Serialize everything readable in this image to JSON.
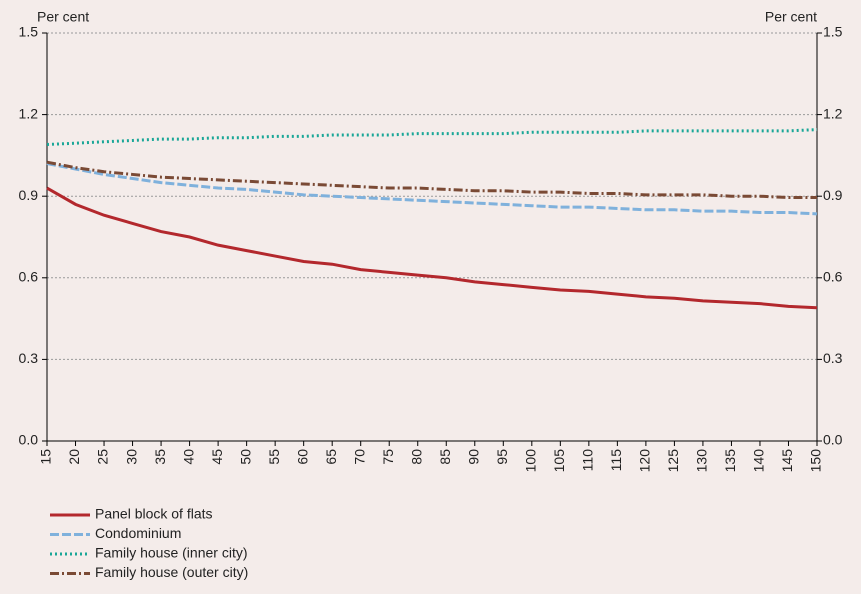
{
  "chart_data": {
    "type": "line",
    "y_label": "Per cent",
    "y2_label": "Per cent",
    "x": [
      15,
      20,
      25,
      30,
      35,
      40,
      45,
      50,
      55,
      60,
      65,
      70,
      75,
      80,
      85,
      90,
      95,
      100,
      105,
      110,
      115,
      120,
      125,
      130,
      135,
      140,
      145,
      150
    ],
    "xlim": [
      15,
      150
    ],
    "xticks": [
      15,
      20,
      25,
      30,
      35,
      40,
      45,
      50,
      55,
      60,
      65,
      70,
      75,
      80,
      85,
      90,
      95,
      100,
      105,
      110,
      115,
      120,
      125,
      130,
      135,
      140,
      145,
      150
    ],
    "ylim": [
      0,
      1.5
    ],
    "yticks": [
      {
        "value": 0,
        "label": "0.0"
      },
      0.3,
      0.6,
      0.9,
      1.2,
      1.5
    ],
    "y2lim": [
      0,
      1.5
    ],
    "y2ticks": [
      {
        "value": 0,
        "label": "0.0"
      },
      0.3,
      0.6,
      0.9,
      1.2,
      1.5
    ],
    "grid": true,
    "series": [
      {
        "name": "Panel block of flats",
        "color": "#b3282d",
        "dash": "solid",
        "values": [
          0.93,
          0.87,
          0.83,
          0.8,
          0.77,
          0.75,
          0.72,
          0.7,
          0.68,
          0.66,
          0.65,
          0.63,
          0.62,
          0.61,
          0.6,
          0.585,
          0.575,
          0.565,
          0.555,
          0.55,
          0.54,
          0.53,
          0.525,
          0.515,
          0.51,
          0.505,
          0.495,
          0.49
        ]
      },
      {
        "name": "Condominium",
        "color": "#7fb1dc",
        "dash": "dashed",
        "values": [
          1.02,
          1.0,
          0.98,
          0.965,
          0.95,
          0.94,
          0.93,
          0.925,
          0.915,
          0.905,
          0.9,
          0.895,
          0.89,
          0.885,
          0.88,
          0.875,
          0.87,
          0.865,
          0.86,
          0.86,
          0.855,
          0.85,
          0.85,
          0.845,
          0.845,
          0.84,
          0.84,
          0.835
        ]
      },
      {
        "name": "Family house (inner city)",
        "color": "#19a697",
        "dash": "dotted",
        "values": [
          1.09,
          1.095,
          1.1,
          1.105,
          1.11,
          1.11,
          1.115,
          1.115,
          1.12,
          1.12,
          1.125,
          1.125,
          1.125,
          1.13,
          1.13,
          1.13,
          1.13,
          1.135,
          1.135,
          1.135,
          1.135,
          1.14,
          1.14,
          1.14,
          1.14,
          1.14,
          1.14,
          1.145
        ]
      },
      {
        "name": "Family house (outer city)",
        "color": "#7a4a35",
        "dash": "dashdot",
        "values": [
          1.025,
          1.005,
          0.99,
          0.98,
          0.97,
          0.965,
          0.96,
          0.955,
          0.95,
          0.945,
          0.94,
          0.935,
          0.93,
          0.93,
          0.925,
          0.92,
          0.92,
          0.915,
          0.915,
          0.91,
          0.91,
          0.905,
          0.905,
          0.905,
          0.9,
          0.9,
          0.895,
          0.895
        ]
      }
    ]
  }
}
